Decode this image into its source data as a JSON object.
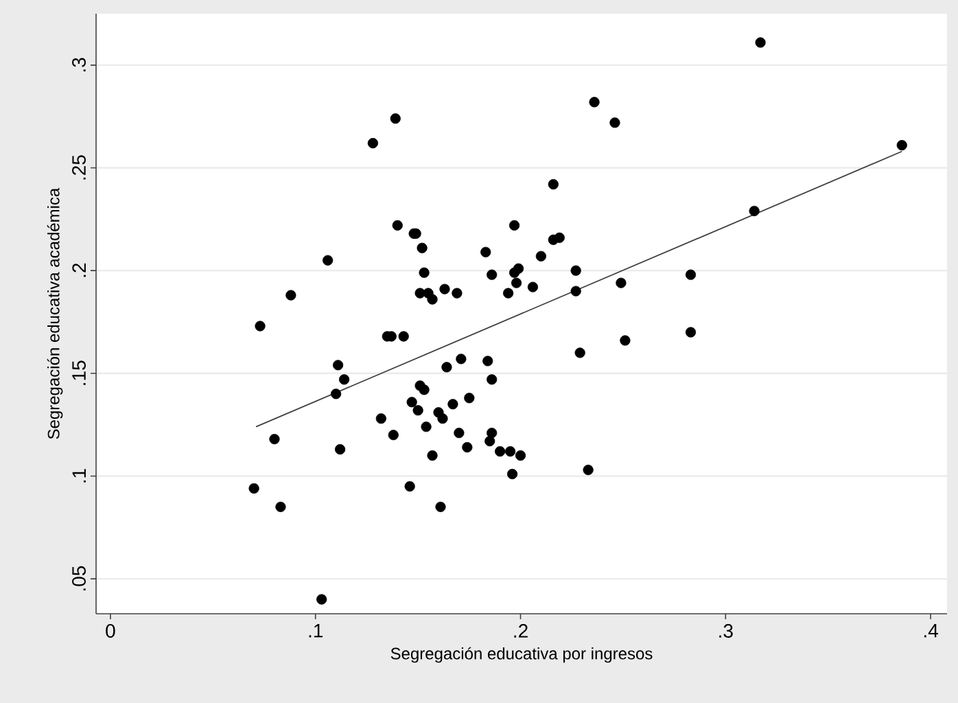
{
  "chart_data": {
    "type": "scatter",
    "xlabel": "Segregación educativa por ingresos",
    "ylabel": "Segregación educativa académica",
    "xlim": [
      -0.007,
      0.408
    ],
    "ylim": [
      0.033,
      0.325
    ],
    "xticks": [
      0,
      {
        "value": 0.1,
        "label": ".1"
      },
      {
        "value": 0.2,
        "label": ".2"
      },
      {
        "value": 0.3,
        "label": ".3"
      },
      {
        "value": 0.4,
        "label": ".4"
      }
    ],
    "yticks": [
      {
        "value": 0.05,
        "label": ".05"
      },
      {
        "value": 0.1,
        "label": ".1"
      },
      {
        "value": 0.15,
        "label": ".15"
      },
      {
        "value": 0.2,
        "label": ".2"
      },
      {
        "value": 0.25,
        "label": ".25"
      },
      {
        "value": 0.3,
        "label": ".3"
      }
    ],
    "grid": "y",
    "series": [
      {
        "marker": "circle",
        "color": "#000000",
        "x": [
          0.139,
          0.128,
          0.14,
          0.148,
          0.149,
          0.152,
          0.106,
          0.153,
          0.088,
          0.151,
          0.073,
          0.135,
          0.137,
          0.143,
          0.317,
          0.236,
          0.246,
          0.386,
          0.216,
          0.314,
          0.197,
          0.216,
          0.219,
          0.183,
          0.21,
          0.186,
          0.197,
          0.199,
          0.227,
          0.283,
          0.198,
          0.249,
          0.155,
          0.157,
          0.163,
          0.169,
          0.194,
          0.206,
          0.227,
          0.283,
          0.251,
          0.111,
          0.114,
          0.11,
          0.151,
          0.147,
          0.15,
          0.132,
          0.138,
          0.154,
          0.08,
          0.112,
          0.07,
          0.146,
          0.083,
          0.103,
          0.229,
          0.164,
          0.171,
          0.184,
          0.186,
          0.153,
          0.167,
          0.175,
          0.16,
          0.162,
          0.17,
          0.174,
          0.186,
          0.185,
          0.19,
          0.195,
          0.2,
          0.157,
          0.196,
          0.233,
          0.161
        ],
        "values": [
          0.274,
          0.262,
          0.222,
          0.218,
          0.218,
          0.211,
          0.205,
          0.199,
          0.188,
          0.189,
          0.173,
          0.168,
          0.168,
          0.168,
          0.311,
          0.282,
          0.272,
          0.261,
          0.242,
          0.229,
          0.222,
          0.215,
          0.216,
          0.209,
          0.207,
          0.198,
          0.199,
          0.201,
          0.2,
          0.198,
          0.194,
          0.194,
          0.189,
          0.186,
          0.191,
          0.189,
          0.189,
          0.192,
          0.19,
          0.17,
          0.166,
          0.154,
          0.147,
          0.14,
          0.144,
          0.136,
          0.132,
          0.128,
          0.12,
          0.124,
          0.118,
          0.113,
          0.094,
          0.095,
          0.085,
          0.04,
          0.16,
          0.153,
          0.157,
          0.156,
          0.147,
          0.142,
          0.135,
          0.138,
          0.131,
          0.128,
          0.121,
          0.114,
          0.121,
          0.117,
          0.112,
          0.112,
          0.11,
          0.11,
          0.101,
          0.103,
          0.085
        ]
      },
      {
        "type": "line",
        "marker": "none",
        "color": "#404040",
        "x": [
          0.071,
          0.386
        ],
        "values": [
          0.124,
          0.258
        ]
      }
    ]
  }
}
